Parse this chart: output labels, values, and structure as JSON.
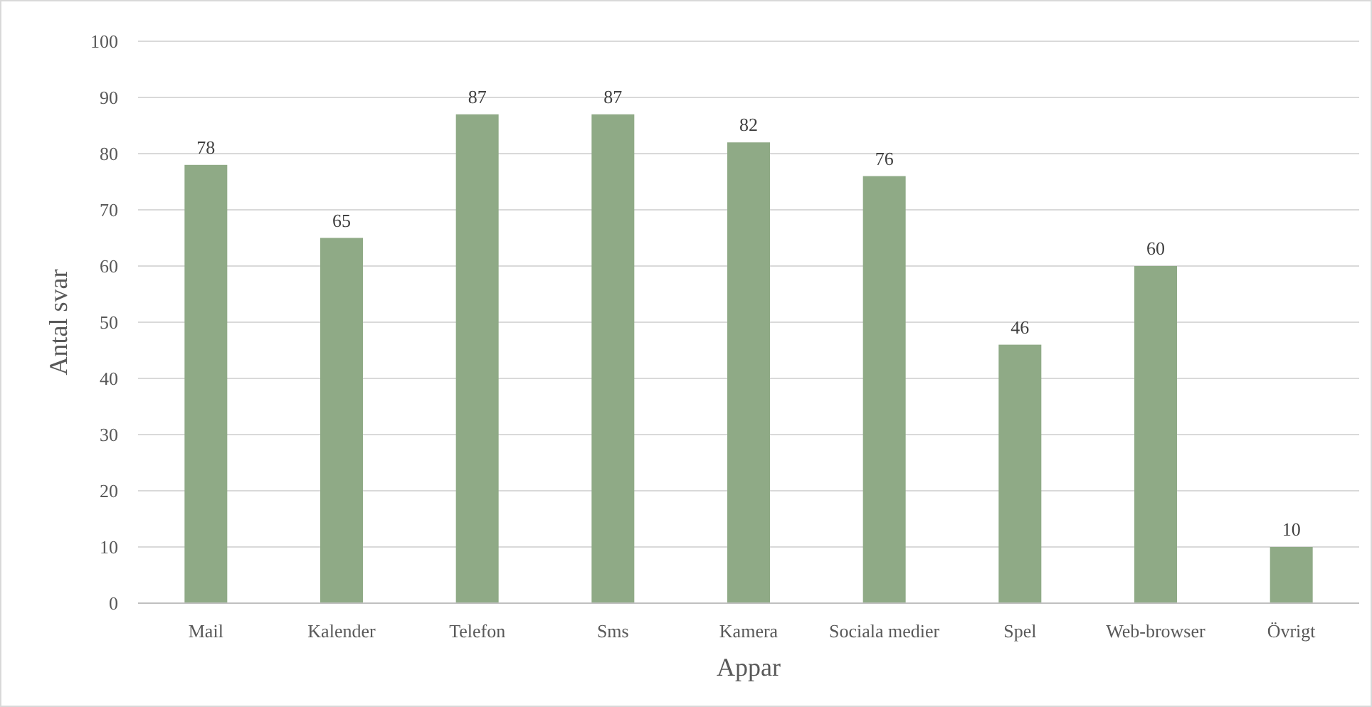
{
  "chart_data": {
    "type": "bar",
    "xlabel": "Appar",
    "ylabel": "Antal svar",
    "categories": [
      "Mail",
      "Kalender",
      "Telefon",
      "Sms",
      "Kamera",
      "Sociala medier",
      "Spel",
      "Web-browser",
      "Övrigt"
    ],
    "values": [
      78,
      65,
      87,
      87,
      82,
      76,
      46,
      60,
      10
    ],
    "color": "#8faa86",
    "ylim": [
      0,
      100
    ],
    "yticks": [
      0,
      10,
      20,
      30,
      40,
      50,
      60,
      70,
      80,
      90,
      100
    ],
    "grid": "y",
    "data_labels": true
  }
}
